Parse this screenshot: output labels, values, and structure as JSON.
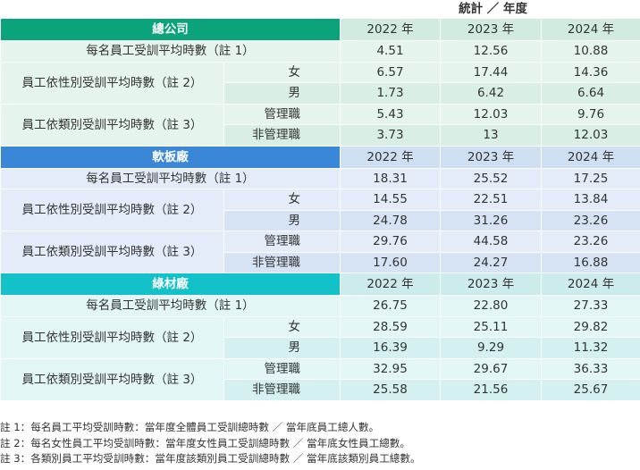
{
  "unit_label": "統計 ／ 年度",
  "sections": [
    {
      "name": "總公司",
      "colors": {
        "header": "#0aa37a",
        "light": "#e6f4ee",
        "mid": "#d9efe6",
        "year_header": "#d2ebe0"
      },
      "years": [
        "2022 年",
        "2023 年",
        "2024 年"
      ],
      "avg_label": "每名員工受訓平均時數（註 1）",
      "avg_values": [
        "4.51",
        "12.56",
        "10.88"
      ],
      "gender_label": "員工依性別受訓平均時數（註 2）",
      "gender_rows": [
        {
          "label": "女",
          "values": [
            "6.57",
            "17.44",
            "14.36"
          ]
        },
        {
          "label": "男",
          "values": [
            "1.73",
            "6.42",
            "6.64"
          ]
        }
      ],
      "category_label": "員工依類別受訓平均時數（註 3）",
      "category_rows": [
        {
          "label": "管理職",
          "values": [
            "5.43",
            "12.03",
            "9.76"
          ]
        },
        {
          "label": "非管理職",
          "values": [
            "3.73",
            "13",
            "12.03"
          ]
        }
      ]
    },
    {
      "name": "軟板廠",
      "colors": {
        "header": "#3a87d8",
        "light": "#e3ecf8",
        "mid": "#d6e3f4",
        "year_header": "#cfdff2"
      },
      "years": [
        "2022 年",
        "2023 年",
        "2024 年"
      ],
      "avg_label": "每名員工受訓平均時數（註 1）",
      "avg_values": [
        "18.31",
        "25.52",
        "17.25"
      ],
      "gender_label": "員工依性別受訓平均時數（註 2）",
      "gender_rows": [
        {
          "label": "女",
          "values": [
            "14.55",
            "22.51",
            "13.84"
          ]
        },
        {
          "label": "男",
          "values": [
            "24.78",
            "31.26",
            "23.26"
          ]
        }
      ],
      "category_label": "員工依類別受訓平均時數（註 3）",
      "category_rows": [
        {
          "label": "管理職",
          "values": [
            "29.76",
            "44.58",
            "23.26"
          ]
        },
        {
          "label": "非管理職",
          "values": [
            "17.60",
            "24.27",
            "16.88"
          ]
        }
      ]
    },
    {
      "name": "綠材廠",
      "colors": {
        "header": "#12c2c8",
        "light": "#e2f6f6",
        "mid": "#d4f0f0",
        "year_header": "#ccecec"
      },
      "years": [
        "2022 年",
        "2023 年",
        "2024 年"
      ],
      "avg_label": "每名員工受訓平均時數（註 1）",
      "avg_values": [
        "26.75",
        "22.80",
        "27.33"
      ],
      "gender_label": "員工依性別受訓平均時數（註 2）",
      "gender_rows": [
        {
          "label": "女",
          "values": [
            "28.59",
            "25.11",
            "29.82"
          ]
        },
        {
          "label": "男",
          "values": [
            "16.39",
            "9.29",
            "11.32"
          ]
        }
      ],
      "category_label": "員工依類別受訓平均時數（註 3）",
      "category_rows": [
        {
          "label": "管理職",
          "values": [
            "32.95",
            "29.67",
            "36.33"
          ]
        },
        {
          "label": "非管理職",
          "values": [
            "25.58",
            "21.56",
            "25.67"
          ]
        }
      ]
    }
  ],
  "notes": [
    "註 1：每名員工平均受訓時數：當年度全體員工受訓總時數 ／ 當年底員工總人數。",
    "註 2：每名女性員工平均受訓時數：當年度女性員工受訓總時數 ／ 當年底女性員工總數。",
    "註 3：各類別員工平均受訓時數：當年度該類別員工受訓總時數 ／ 當年底該類別員工總數。"
  ]
}
